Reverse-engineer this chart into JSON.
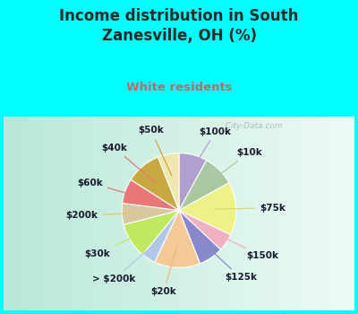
{
  "title": "Income distribution in South\nZanesville, OH (%)",
  "subtitle": "White residents",
  "title_color": "#2a2a2a",
  "subtitle_color": "#c06868",
  "background_color": "#00ffff",
  "labels": [
    "$100k",
    "$10k",
    "$75k",
    "$150k",
    "$125k",
    "$20k",
    "> $200k",
    "$30k",
    "$200k",
    "$60k",
    "$40k",
    "$50k"
  ],
  "values": [
    8,
    9,
    15,
    5,
    7,
    13,
    4,
    10,
    6,
    7,
    10,
    6
  ],
  "colors": [
    "#b0a0d0",
    "#a8c8a0",
    "#f0f088",
    "#f0b0c0",
    "#8888cc",
    "#f5c898",
    "#b0c8e8",
    "#c0e860",
    "#d8c8a0",
    "#e87878",
    "#c8a840",
    "#f0e8b0"
  ],
  "line_colors": [
    "#b0a0d0",
    "#a8c8a0",
    "#d8d878",
    "#f0b0c0",
    "#8888cc",
    "#f0b878",
    "#b0c8e8",
    "#c0e860",
    "#d8c870",
    "#e87878",
    "#e87878",
    "#c8a840"
  ],
  "label_color": "#1a1a2e",
  "label_fontsize": 7.5,
  "watermark": "  City-Data.com"
}
